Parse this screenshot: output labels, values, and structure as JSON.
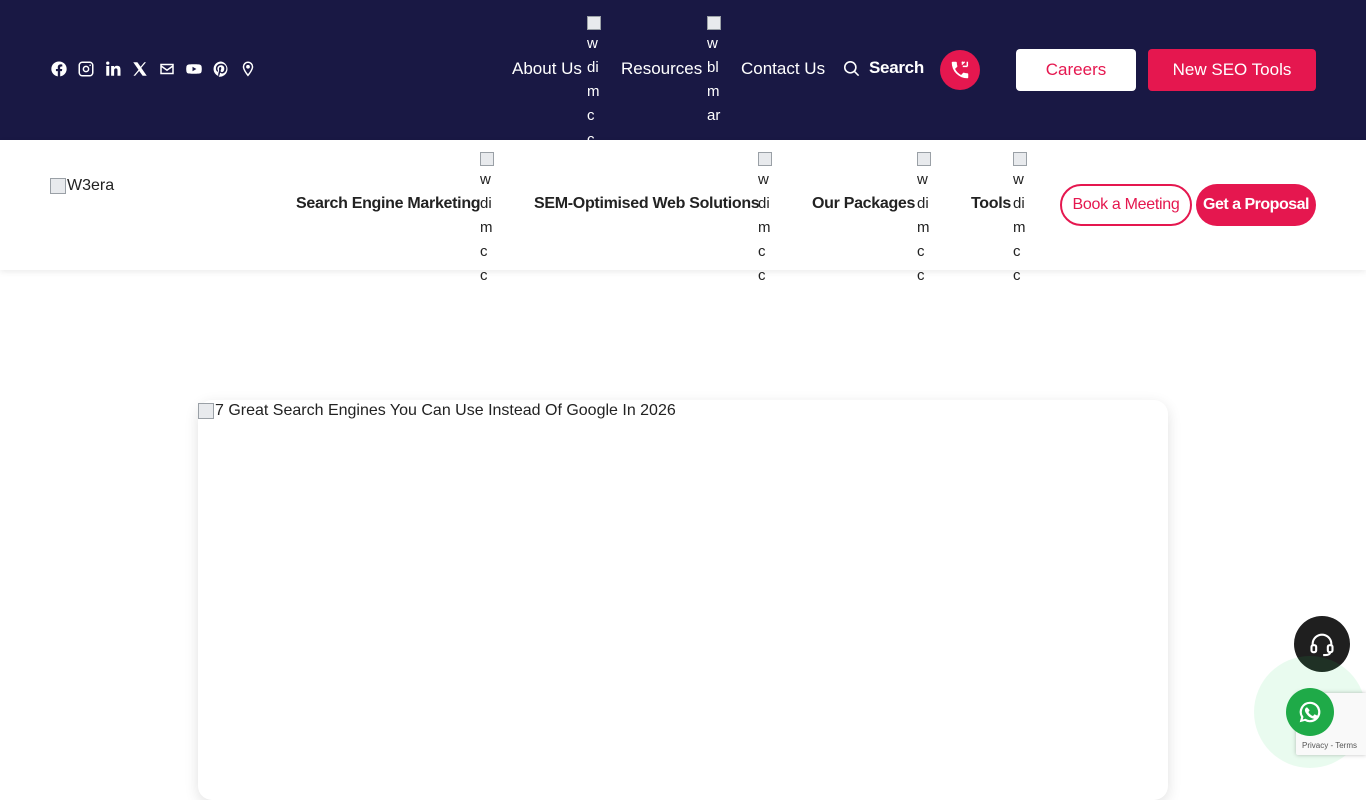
{
  "topbar": {
    "social_icons": [
      "facebook-icon",
      "instagram-icon",
      "linkedin-icon",
      "x-icon",
      "mail-icon",
      "youtube-icon",
      "pinterest-icon",
      "location-icon"
    ],
    "links": {
      "about": "About Us",
      "about_img_alt": "w di m cc",
      "resources": "Resources",
      "resources_img_alt": "w bl m ar",
      "contact": "Contact Us"
    },
    "search_label": "Search",
    "careers_label": "Careers",
    "seo_tools_label": "New SEO Tools"
  },
  "mainnav": {
    "logo_alt": "W3era",
    "items": [
      {
        "label": "Search Engine Marketing",
        "img_alt": "w di m cc"
      },
      {
        "label": "SEM-Optimised Web Solutions",
        "img_alt": "w di m cc"
      },
      {
        "label": "Our Packages",
        "img_alt": "w di m cc"
      },
      {
        "label": "Tools",
        "img_alt": "w di m cc"
      }
    ],
    "book_meeting_label": "Book a Meeting",
    "proposal_label": "Get a Proposal"
  },
  "content": {
    "hero_alt": "7 Great Search Engines You Can Use Instead Of Google In 2026"
  },
  "recaptcha": {
    "privacy": "Privacy",
    "separator": " - ",
    "terms": "Terms"
  },
  "colors": {
    "topbar_bg": "#191844",
    "accent": "#e5174f",
    "whatsapp": "#1faa48"
  }
}
